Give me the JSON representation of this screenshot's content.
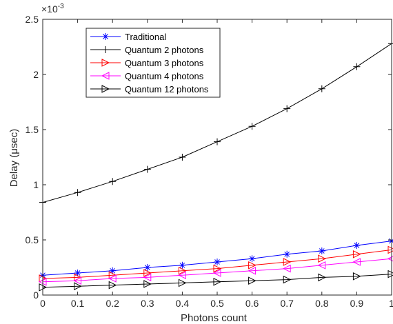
{
  "chart_data": {
    "type": "line",
    "title": "",
    "xlabel": "Photons count",
    "ylabel": "Delay (μsec)",
    "y_exponent_label": "×10",
    "y_exponent_power": "-3",
    "xlim": [
      0,
      1
    ],
    "ylim": [
      0,
      0.0025
    ],
    "x_ticks": [
      0,
      0.1,
      0.2,
      0.3,
      0.4,
      0.5,
      0.6,
      0.7,
      0.8,
      0.9,
      1
    ],
    "x_tick_labels": [
      "0",
      "0.1",
      "0.2",
      "0.3",
      "0.4",
      "0.5",
      "0.6",
      "0.7",
      "0.8",
      "0.9",
      "1"
    ],
    "y_ticks": [
      0,
      0.0005,
      0.001,
      0.0015,
      0.002,
      0.0025
    ],
    "y_tick_labels": [
      "0",
      "0.5",
      "1",
      "1.5",
      "2",
      "2.5"
    ],
    "grid": false,
    "legend_position": "top-left",
    "x": [
      0,
      0.1,
      0.2,
      0.3,
      0.4,
      0.5,
      0.6,
      0.7,
      0.8,
      0.9,
      1
    ],
    "series": [
      {
        "name": "Traditional",
        "color": "#0000ff",
        "marker": "asterisk",
        "values": [
          0.00018,
          0.0002,
          0.00022,
          0.00025,
          0.00027,
          0.0003,
          0.00033,
          0.00037,
          0.0004,
          0.00045,
          0.00049
        ]
      },
      {
        "name": "Quantum 2 photons",
        "color": "#000000",
        "marker": "plus",
        "values": [
          0.00084,
          0.00093,
          0.00103,
          0.00114,
          0.00125,
          0.00139,
          0.00153,
          0.00169,
          0.00187,
          0.00207,
          0.00228
        ]
      },
      {
        "name": "Quantum 3 photons",
        "color": "#ff0000",
        "marker": "triangle-right",
        "values": [
          0.00015,
          0.00016,
          0.00018,
          0.0002,
          0.00022,
          0.00024,
          0.00027,
          0.0003,
          0.00033,
          0.00037,
          0.00041
        ]
      },
      {
        "name": "Quantum 4 photons",
        "color": "#ff00ff",
        "marker": "triangle-left",
        "values": [
          0.00012,
          0.00013,
          0.00015,
          0.00016,
          0.00018,
          0.0002,
          0.00022,
          0.00024,
          0.00027,
          0.0003,
          0.00033
        ]
      },
      {
        "name": "Quantum 12 photons",
        "color": "#000000",
        "marker": "triangle-right",
        "values": [
          7e-05,
          8e-05,
          9e-05,
          0.0001,
          0.00011,
          0.00012,
          0.00013,
          0.00014,
          0.00016,
          0.00017,
          0.00019
        ]
      }
    ]
  }
}
